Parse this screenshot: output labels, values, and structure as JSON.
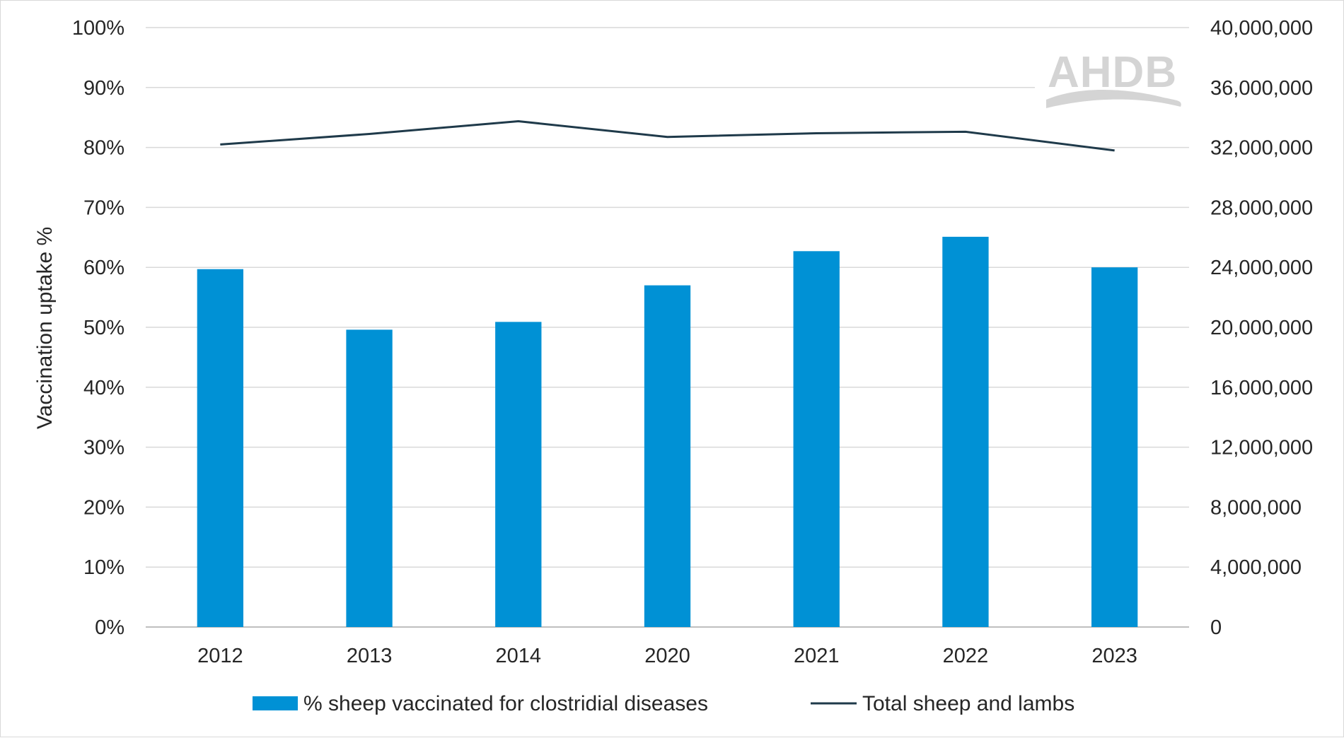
{
  "chart_data": {
    "type": "bar",
    "categories": [
      "2012",
      "2013",
      "2014",
      "2020",
      "2021",
      "2022",
      "2023"
    ],
    "series": [
      {
        "name": "% sheep vaccinated for clostridial diseases",
        "type": "bar",
        "axis": "left",
        "color": "#0091d5",
        "values": [
          59.7,
          49.6,
          50.9,
          57.0,
          62.7,
          65.1,
          60.0
        ]
      },
      {
        "name": "Total sheep and lambs",
        "type": "line",
        "axis": "right",
        "color": "#1f3a4a",
        "values": [
          32200000,
          32900000,
          33750000,
          32700000,
          32950000,
          33050000,
          31800000
        ]
      }
    ],
    "ylabel": "Vaccination uptake %",
    "ylim": [
      0,
      100
    ],
    "y2lim": [
      0,
      40000000
    ],
    "yticks": [
      "0%",
      "10%",
      "20%",
      "30%",
      "40%",
      "50%",
      "60%",
      "70%",
      "80%",
      "90%",
      "100%"
    ],
    "y2ticks": [
      "0",
      "4,000,000",
      "8,000,000",
      "12,000,000",
      "16,000,000",
      "20,000,000",
      "24,000,000",
      "28,000,000",
      "32,000,000",
      "36,000,000",
      "40,000,000"
    ],
    "grid": true,
    "legend": "bottom",
    "watermark": "AHDB"
  }
}
